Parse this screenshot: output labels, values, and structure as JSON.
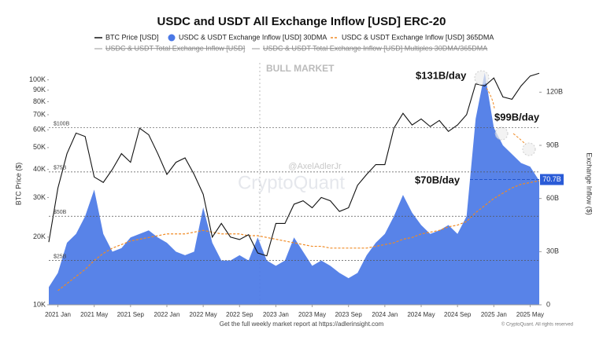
{
  "chart_data": {
    "type": "line",
    "title": "USDC and USDT All Exchange Inflow [USD] ERC-20",
    "y_label": "BTC Price ($)",
    "y2_label": "Exchange Inflow ($)",
    "xlim": [
      "2020-12",
      "2025-06"
    ],
    "xticks": [
      {
        "value": "2021-01",
        "label": "2021 Jan"
      },
      {
        "value": "2021-05",
        "label": "2021 May"
      },
      {
        "value": "2021-09",
        "label": "2021 Sep"
      },
      {
        "value": "2022-01",
        "label": "2022 Jan"
      },
      {
        "value": "2022-05",
        "label": "2022 May"
      },
      {
        "value": "2022-09",
        "label": "2022 Sep"
      },
      {
        "value": "2023-01",
        "label": "2023 Jan"
      },
      {
        "value": "2023-05",
        "label": "2023 May"
      },
      {
        "value": "2023-09",
        "label": "2023 Sep"
      },
      {
        "value": "2024-01",
        "label": "2024 Jan"
      },
      {
        "value": "2024-05",
        "label": "2024 May"
      },
      {
        "value": "2024-09",
        "label": "2024 Sep"
      },
      {
        "value": "2025-01",
        "label": "2025 Jan"
      },
      {
        "value": "2025-05",
        "label": "2025 May"
      }
    ],
    "log_y": true,
    "ylim": [
      10000,
      120000
    ],
    "yticks": [
      {
        "value": 10000,
        "label": "10K"
      },
      {
        "value": 20000,
        "label": "20K"
      },
      {
        "value": 30000,
        "label": "30K"
      },
      {
        "value": 40000,
        "label": "40K"
      },
      {
        "value": 50000,
        "label": "50K"
      },
      {
        "value": 60000,
        "label": "60K"
      },
      {
        "value": 70000,
        "label": "70K"
      },
      {
        "value": 80000,
        "label": "80K"
      },
      {
        "value": 90000,
        "label": "90K"
      },
      {
        "value": 100000,
        "label": "100K"
      }
    ],
    "y2lim": [
      0,
      137
    ],
    "y2ticks": [
      0,
      {
        "value": 30,
        "label": "30B"
      },
      {
        "value": 60,
        "label": "60B"
      },
      {
        "value": 90,
        "label": "90B"
      },
      {
        "value": 120,
        "label": "120B"
      }
    ],
    "x": [
      "2020-12",
      "2021-01",
      "2021-02",
      "2021-03",
      "2021-04",
      "2021-05",
      "2021-06",
      "2021-07",
      "2021-08",
      "2021-09",
      "2021-10",
      "2021-11",
      "2021-12",
      "2022-01",
      "2022-02",
      "2022-03",
      "2022-04",
      "2022-05",
      "2022-06",
      "2022-07",
      "2022-08",
      "2022-09",
      "2022-10",
      "2022-11",
      "2022-12",
      "2023-01",
      "2023-02",
      "2023-03",
      "2023-04",
      "2023-05",
      "2023-06",
      "2023-07",
      "2023-08",
      "2023-09",
      "2023-10",
      "2023-11",
      "2023-12",
      "2024-01",
      "2024-02",
      "2024-03",
      "2024-04",
      "2024-05",
      "2024-06",
      "2024-07",
      "2024-08",
      "2024-09",
      "2024-10",
      "2024-11",
      "2024-12",
      "2025-01",
      "2025-02",
      "2025-03",
      "2025-04",
      "2025-05",
      "2025-06"
    ],
    "series": [
      {
        "name": "USDC & USDT Exchange Inflow [USD] 30DMA",
        "kind": "area",
        "axis": "y2",
        "color": "#4a78e6",
        "values": [
          10,
          18,
          35,
          40,
          50,
          65,
          40,
          30,
          32,
          38,
          40,
          42,
          38,
          35,
          30,
          28,
          30,
          55,
          35,
          25,
          25,
          28,
          25,
          38,
          25,
          22,
          25,
          38,
          30,
          22,
          25,
          22,
          18,
          15,
          18,
          28,
          35,
          40,
          50,
          62,
          52,
          45,
          40,
          42,
          45,
          40,
          50,
          105,
          131,
          100,
          90,
          85,
          80,
          78,
          70
        ]
      },
      {
        "name": "USDC & USDT Exchange Inflow [USD] 365DMA",
        "kind": "dashed",
        "axis": "y2",
        "color": "#f08a24",
        "values": [
          null,
          8,
          12,
          16,
          20,
          25,
          29,
          32,
          34,
          36,
          37,
          38,
          39,
          40,
          40,
          40,
          41,
          42,
          41,
          40,
          40,
          40,
          39,
          39,
          38,
          37,
          36,
          35,
          34,
          33,
          33,
          32,
          32,
          32,
          32,
          32,
          33,
          34,
          35,
          37,
          38,
          40,
          41,
          42,
          44,
          45,
          47,
          52,
          56,
          60,
          63,
          66,
          68,
          69,
          70
        ]
      },
      {
        "name": "BTC Price [USD]",
        "kind": "line",
        "color": "#111111",
        "values": [
          19000,
          33000,
          47000,
          58000,
          56000,
          37000,
          35000,
          40000,
          47000,
          43000,
          61000,
          57000,
          47000,
          38000,
          43000,
          45000,
          38000,
          31000,
          20000,
          23000,
          20000,
          19500,
          20500,
          17000,
          16500,
          23000,
          23000,
          28000,
          29000,
          27000,
          30000,
          29000,
          26000,
          27000,
          34000,
          38000,
          42000,
          42000,
          61000,
          71000,
          63000,
          67000,
          62000,
          66000,
          59000,
          63000,
          70000,
          96000,
          94000,
          102000,
          84000,
          82000,
          94000,
          104000,
          107000
        ]
      }
    ],
    "hidden_legend": [
      "USDC & USDT Total Exchange Inflow [USD]",
      "USDC & USDT Total Exchange Inflow [USD] Multiples 30DMA/365DMA"
    ],
    "reference_lines": [
      {
        "label": "$100B",
        "value": 100
      },
      {
        "label": "$75B",
        "value": 75
      },
      {
        "label": "$50B",
        "value": 50
      },
      {
        "label": "$25B",
        "value": 25
      }
    ],
    "current_value": {
      "value": 70.7,
      "label": "70.7B"
    },
    "annotations": [
      "$131B/day",
      "$99B/day",
      "$70B/day"
    ],
    "regime_label": "BULL MARKET",
    "handle": "@AxelAdlerJr",
    "watermark": "CryptoQuant",
    "footer": "Get the full weekly market report at https://adlerinsight.com",
    "copyright": "© CryptoQuant. All rights reserved"
  }
}
